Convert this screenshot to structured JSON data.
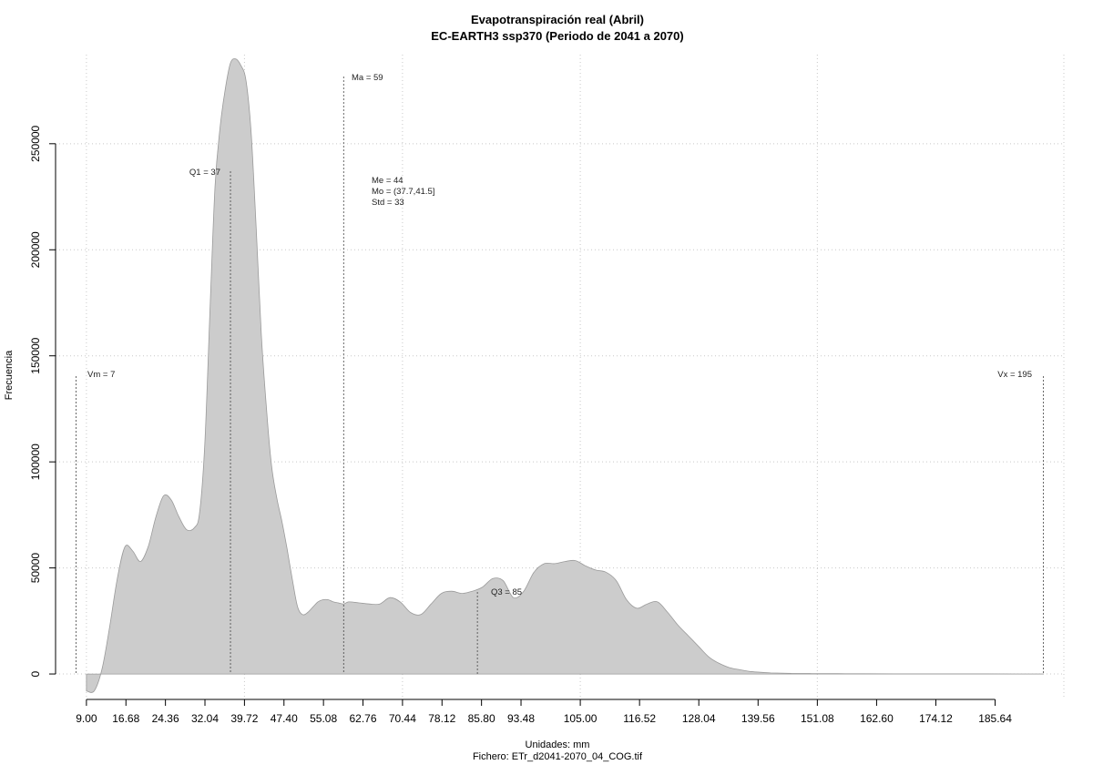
{
  "chart_data": {
    "type": "area",
    "title": "Evapotranspiración real (Abril)",
    "subtitle": "EC-EARTH3 ssp370 (Periodo de 2041 a 2070)",
    "xlabel": "Unidades: mm",
    "footer": "Fichero: ETr_d2041-2070_04_COG.tif",
    "ylabel": "Frecuencia",
    "xlim": [
      3.0,
      199.0
    ],
    "ylim": [
      -12000,
      292000
    ],
    "grid": true,
    "fill_color": "#cccccc",
    "x_ticks": [
      "9.00",
      "16.68",
      "24.36",
      "32.04",
      "39.72",
      "47.40",
      "55.08",
      "62.76",
      "70.44",
      "78.12",
      "85.80",
      "93.48",
      "105.00",
      "116.52",
      "128.04",
      "139.56",
      "151.08",
      "162.60",
      "174.12",
      "185.64"
    ],
    "x_tick_values": [
      9.0,
      16.68,
      24.36,
      32.04,
      39.72,
      47.4,
      55.08,
      62.76,
      70.44,
      78.12,
      85.8,
      93.48,
      105.0,
      116.52,
      128.04,
      139.56,
      151.08,
      162.6,
      174.12,
      185.64
    ],
    "y_ticks": [
      "0",
      "50000",
      "100000",
      "150000",
      "200000",
      "250000"
    ],
    "y_tick_values": [
      0,
      50000,
      100000,
      150000,
      200000,
      250000
    ],
    "x": [
      9.0,
      10.5,
      12.0,
      13.5,
      15.0,
      16.5,
      18.0,
      19.5,
      21.0,
      22.5,
      24.0,
      25.5,
      27.0,
      28.5,
      30.0,
      31.0,
      32.0,
      33.0,
      34.0,
      35.0,
      36.0,
      37.0,
      38.0,
      39.0,
      40.0,
      41.0,
      42.0,
      43.0,
      44.0,
      45.0,
      46.0,
      47.0,
      48.0,
      49.0,
      50.0,
      51.0,
      52.0,
      53.0,
      54.0,
      55.0,
      56.0,
      57.0,
      58.0,
      59.0,
      60.0,
      62.0,
      64.0,
      66.0,
      68.0,
      70.0,
      72.0,
      74.0,
      76.0,
      78.0,
      80.0,
      82.0,
      84.0,
      86.0,
      88.0,
      90.0,
      92.0,
      94.0,
      96.0,
      98.0,
      100.0,
      102.0,
      104.0,
      106.0,
      108.0,
      110.0,
      112.0,
      114.0,
      116.0,
      118.0,
      120.0,
      122.0,
      124.0,
      126.0,
      128.0,
      130.0,
      132.0,
      134.0,
      136.0,
      138.0,
      140.0,
      142.0,
      144.0,
      146.0,
      148.0,
      150.0,
      155.0,
      160.0,
      170.0,
      180.0,
      190.0,
      195.0
    ],
    "y": [
      -8000,
      -8000,
      2000,
      22000,
      45000,
      60000,
      58000,
      53000,
      60000,
      74000,
      84000,
      82000,
      74000,
      68000,
      69000,
      76000,
      108000,
      170000,
      230000,
      258000,
      276000,
      288000,
      290000,
      287000,
      280000,
      256000,
      210000,
      160000,
      125000,
      98000,
      83000,
      72000,
      59000,
      45000,
      32000,
      28000,
      29000,
      31500,
      34000,
      35000,
      35000,
      34000,
      33500,
      33000,
      34000,
      33500,
      33000,
      33000,
      36000,
      34000,
      29000,
      28000,
      33000,
      38000,
      39000,
      38000,
      39000,
      41000,
      45000,
      44000,
      36000,
      39000,
      48000,
      52000,
      52000,
      53000,
      53500,
      51000,
      49000,
      48000,
      44000,
      35000,
      31000,
      33000,
      34000,
      29000,
      23000,
      18000,
      13000,
      8000,
      5000,
      3000,
      2000,
      1200,
      800,
      500,
      400,
      300,
      250,
      200,
      150,
      100,
      80,
      60,
      40,
      30
    ],
    "annotations": [
      {
        "label": "Vm = 7",
        "x": 7
      },
      {
        "label": "Q1 = 37",
        "x": 37
      },
      {
        "label": "Ma = 59",
        "x": 59
      },
      {
        "label": "Q3 = 85",
        "x": 85
      },
      {
        "label": "Vx = 195",
        "x": 195
      }
    ],
    "stats": [
      "Me = 44",
      "Mo = (37.7,41.5]",
      "Std = 33"
    ]
  }
}
